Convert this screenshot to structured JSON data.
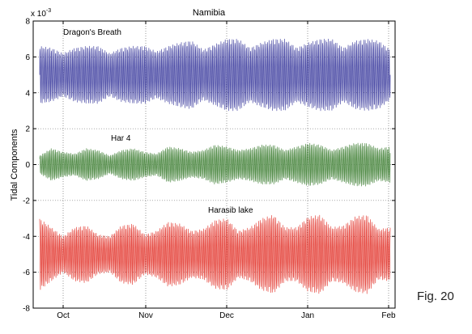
{
  "figure_label": "Fig. 20",
  "chart_data": {
    "type": "line",
    "title": "Namibia",
    "ylabel": "Tidal Components",
    "y_multiplier": "x 10",
    "y_exponent": "-3",
    "ylim": [
      -8,
      8
    ],
    "y_ticks": [
      -8,
      -6,
      -4,
      -2,
      0,
      2,
      4,
      6,
      8
    ],
    "x_ticks": [
      "Oct",
      "Nov",
      "Dec",
      "Jan",
      "Feb"
    ],
    "grid": true,
    "series": [
      {
        "name": "Dragon's Breath",
        "color": "#4c4ca6",
        "mean": 5.0,
        "amplitude_envelope": [
          1.6,
          1.5,
          1.2,
          1.5,
          1.6,
          1.6,
          1.2,
          1.5,
          1.6,
          1.6,
          1.3,
          1.6,
          1.8,
          1.9,
          1.4,
          1.7,
          2.0,
          2.0,
          1.5,
          1.8,
          2.0,
          2.0,
          1.5,
          1.8,
          2.0,
          2.0,
          1.5,
          1.9,
          2.0,
          1.9,
          1.4
        ]
      },
      {
        "name": "Har 4",
        "color": "#4f8a45",
        "mean": 0.0,
        "amplitude_envelope": [
          0.5,
          0.9,
          0.7,
          0.6,
          0.9,
          0.8,
          0.5,
          0.8,
          0.9,
          0.7,
          0.6,
          1.0,
          0.9,
          0.7,
          0.8,
          1.1,
          1.0,
          0.8,
          0.9,
          1.1,
          1.1,
          0.8,
          1.0,
          1.2,
          1.1,
          0.8,
          1.0,
          1.2,
          1.2,
          0.9,
          1.0
        ]
      },
      {
        "name": "Harasib lake",
        "color": "#e5473f",
        "mean": -5.0,
        "amplitude_envelope": [
          2.0,
          1.5,
          1.0,
          1.5,
          1.6,
          1.1,
          1.0,
          1.6,
          1.7,
          1.1,
          1.3,
          1.8,
          1.7,
          1.3,
          1.4,
          1.9,
          2.0,
          1.3,
          1.5,
          2.0,
          2.2,
          1.5,
          1.5,
          2.1,
          2.2,
          1.5,
          1.6,
          2.1,
          2.2,
          1.4,
          1.5
        ]
      }
    ]
  }
}
